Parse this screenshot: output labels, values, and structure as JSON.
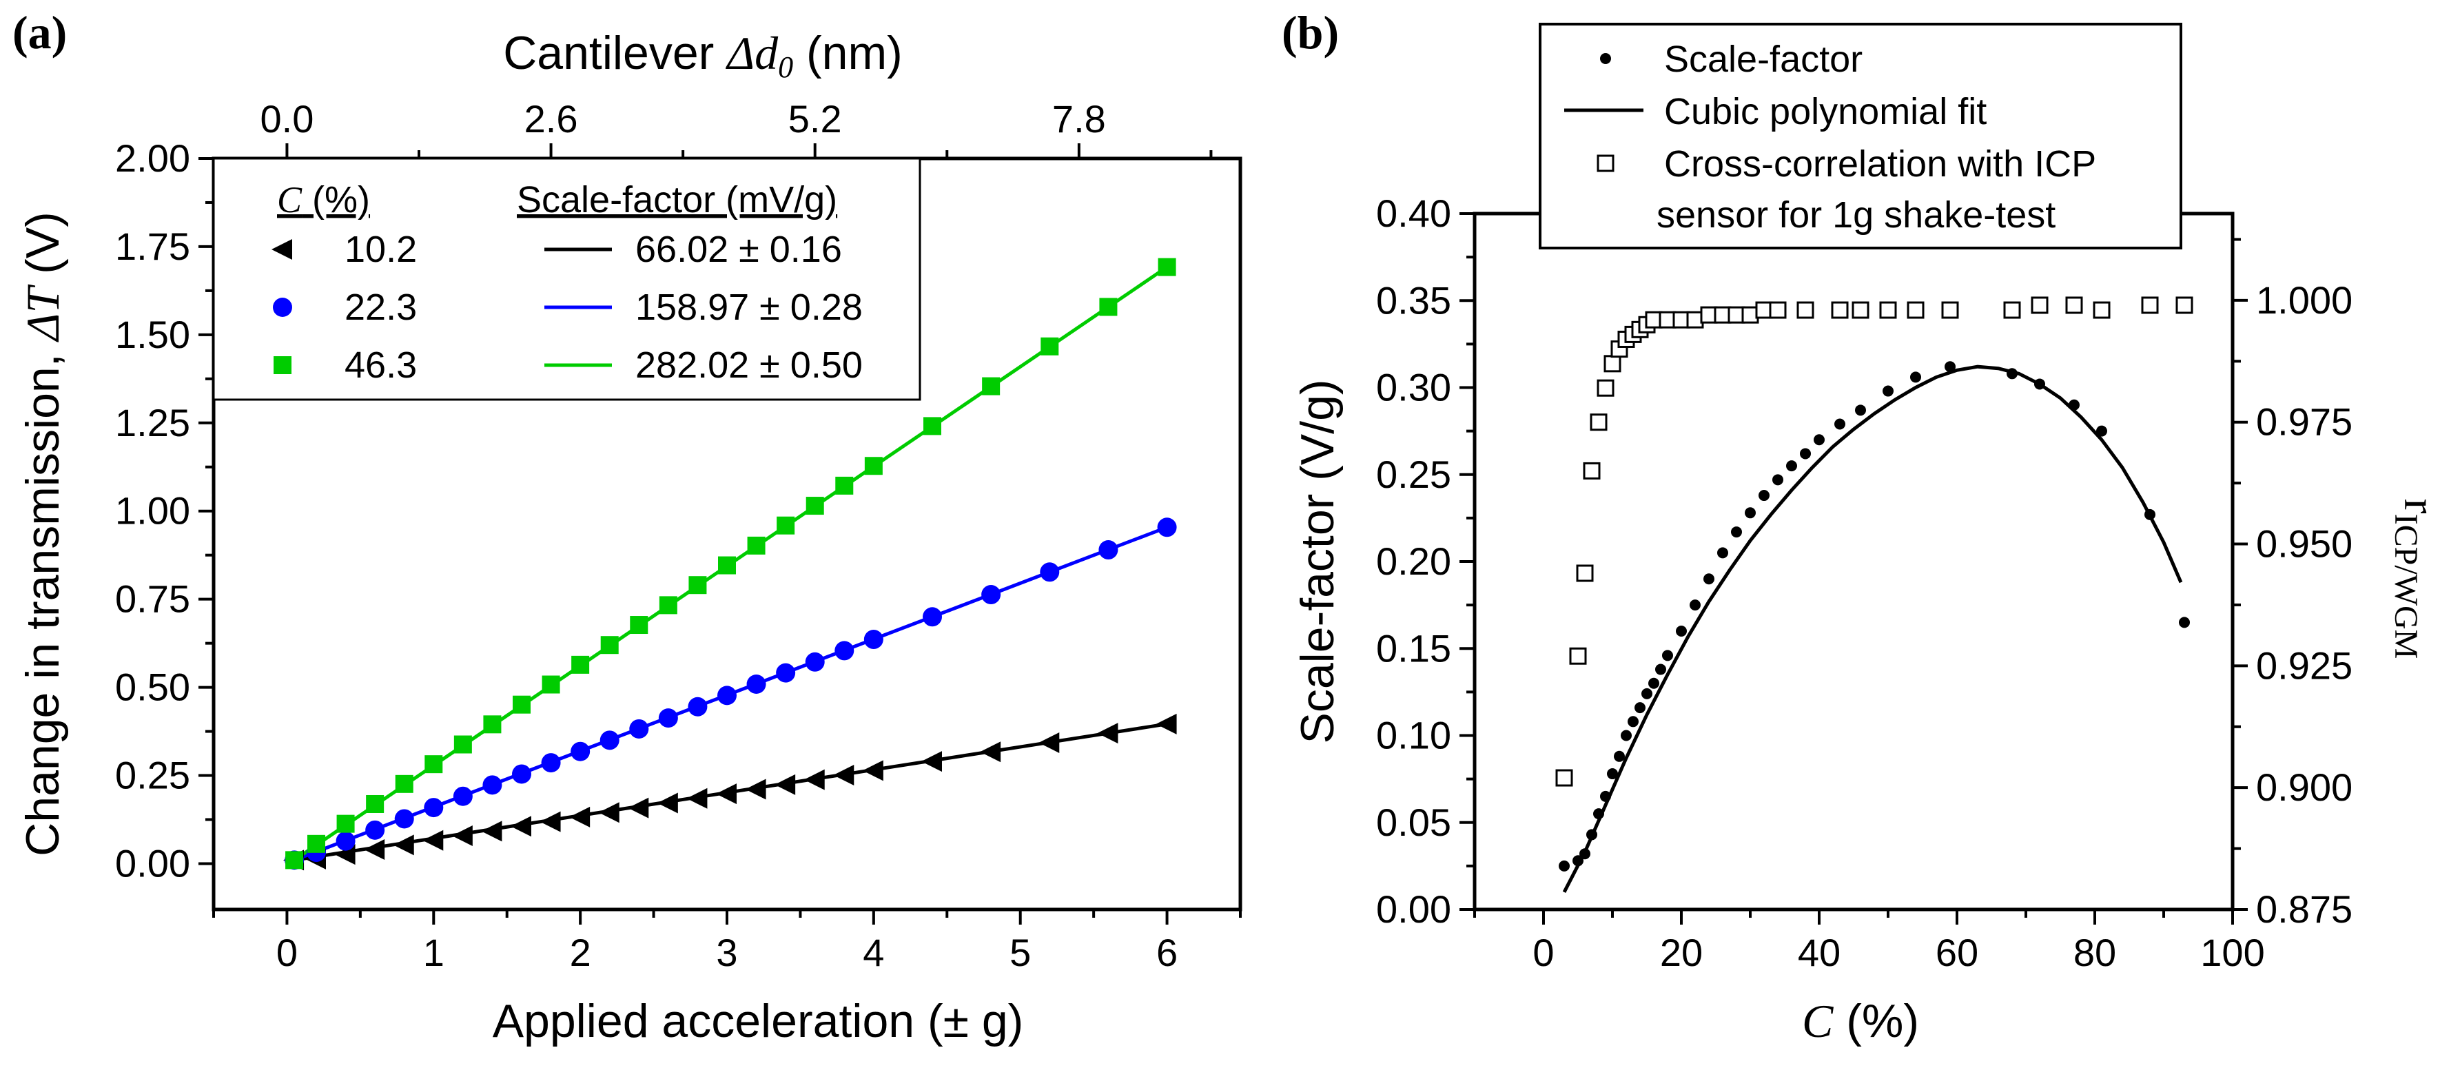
{
  "chart_data": [
    {
      "panel": "(a)",
      "type": "line",
      "xlabel": "Applied acceleration (± g)",
      "ylabel_prefix": "Change in transmission, ",
      "ylabel_symbol": "ΔT",
      "ylabel_suffix": " (V)",
      "top_xlabel_prefix": "Cantilever ",
      "top_xlabel_symbol": "Δd",
      "top_xlabel_sub": "0",
      "top_xlabel_suffix": " (nm)",
      "xlim": [
        -0.5,
        6.5
      ],
      "ylim": [
        -0.13,
        2.0
      ],
      "x_ticks": [
        0,
        1,
        2,
        3,
        4,
        5,
        6
      ],
      "x_tick_labels": [
        "0",
        "1",
        "2",
        "3",
        "4",
        "5",
        "6"
      ],
      "y_ticks": [
        0,
        0.25,
        0.5,
        0.75,
        1.0,
        1.25,
        1.5,
        1.75,
        2.0
      ],
      "y_tick_labels": [
        "0.00",
        "0.25",
        "0.50",
        "0.75",
        "1.00",
        "1.25",
        "1.50",
        "1.75",
        "2.00"
      ],
      "top_ticks_at_x": [
        0,
        1.8,
        3.6,
        5.4
      ],
      "top_tick_labels": [
        "0.0",
        "2.6",
        "5.2",
        "7.8"
      ],
      "legend": {
        "header_c": "C",
        "header_c_suffix": " (%)",
        "header_sf": "Scale-factor (mV/g)",
        "entries": [
          {
            "c": "10.2",
            "sf": "66.02 ± 0.16",
            "color": "#000000",
            "marker": "triangle-left"
          },
          {
            "c": "22.3",
            "sf": "158.97 ± 0.28",
            "color": "#0000ff",
            "marker": "circle"
          },
          {
            "c": "46.3",
            "sf": "282.02 ± 0.50",
            "color": "#00cc00",
            "marker": "square"
          }
        ]
      },
      "series": [
        {
          "name": "10.2",
          "color": "#000000",
          "marker": "triangle-left",
          "fit_slope": 0.066,
          "x": [
            0.05,
            0.2,
            0.4,
            0.6,
            0.8,
            1.0,
            1.2,
            1.4,
            1.6,
            1.8,
            2.0,
            2.2,
            2.4,
            2.6,
            2.8,
            3.0,
            3.2,
            3.4,
            3.6,
            3.8,
            4.0,
            4.4,
            4.8,
            5.2,
            5.6,
            6.0
          ],
          "y": [
            0.01,
            0.013,
            0.026,
            0.04,
            0.053,
            0.066,
            0.079,
            0.092,
            0.106,
            0.119,
            0.132,
            0.145,
            0.158,
            0.172,
            0.185,
            0.198,
            0.211,
            0.224,
            0.238,
            0.251,
            0.264,
            0.29,
            0.317,
            0.343,
            0.37,
            0.396
          ]
        },
        {
          "name": "22.3",
          "color": "#0000ff",
          "marker": "circle",
          "fit_slope": 0.159,
          "x": [
            0.05,
            0.2,
            0.4,
            0.6,
            0.8,
            1.0,
            1.2,
            1.4,
            1.6,
            1.8,
            2.0,
            2.2,
            2.4,
            2.6,
            2.8,
            3.0,
            3.2,
            3.4,
            3.6,
            3.8,
            4.0,
            4.4,
            4.8,
            5.2,
            5.6,
            6.0
          ],
          "y": [
            0.01,
            0.032,
            0.064,
            0.095,
            0.127,
            0.159,
            0.191,
            0.223,
            0.254,
            0.286,
            0.318,
            0.35,
            0.382,
            0.413,
            0.445,
            0.477,
            0.509,
            0.541,
            0.572,
            0.604,
            0.636,
            0.7,
            0.763,
            0.827,
            0.89,
            0.954
          ]
        },
        {
          "name": "46.3",
          "color": "#00cc00",
          "marker": "square",
          "fit_slope": 0.282,
          "x": [
            0.05,
            0.2,
            0.4,
            0.6,
            0.8,
            1.0,
            1.2,
            1.4,
            1.6,
            1.8,
            2.0,
            2.2,
            2.4,
            2.6,
            2.8,
            3.0,
            3.2,
            3.4,
            3.6,
            3.8,
            4.0,
            4.4,
            4.8,
            5.2,
            5.6,
            6.0
          ],
          "y": [
            0.01,
            0.056,
            0.113,
            0.169,
            0.226,
            0.282,
            0.338,
            0.395,
            0.451,
            0.508,
            0.564,
            0.62,
            0.677,
            0.733,
            0.79,
            0.846,
            0.902,
            0.959,
            1.015,
            1.072,
            1.128,
            1.241,
            1.354,
            1.467,
            1.579,
            1.692
          ]
        }
      ]
    },
    {
      "panel": "(b)",
      "type": "scatter",
      "xlabel_symbol": "C",
      "xlabel_suffix": " (%)",
      "ylabel": "Scale-factor (V/g)",
      "ylabel_right": "r",
      "ylabel_right_sub": "ICP/WGM",
      "xlim": [
        -10,
        100
      ],
      "ylim": [
        0,
        0.4
      ],
      "y2lim": [
        0.875,
        1.0178
      ],
      "x_ticks": [
        0,
        20,
        40,
        60,
        80,
        100
      ],
      "x_tick_labels": [
        "0",
        "20",
        "40",
        "60",
        "80",
        "100"
      ],
      "y_ticks": [
        0,
        0.05,
        0.1,
        0.15,
        0.2,
        0.25,
        0.3,
        0.35,
        0.4
      ],
      "y_tick_labels": [
        "0.00",
        "0.05",
        "0.10",
        "0.15",
        "0.20",
        "0.25",
        "0.30",
        "0.35",
        "0.40"
      ],
      "y2_ticks": [
        0.875,
        0.9,
        0.925,
        0.95,
        0.975,
        1.0
      ],
      "y2_tick_labels": [
        "0.875",
        "0.900",
        "0.925",
        "0.950",
        "0.975",
        "1.000"
      ],
      "legend": [
        {
          "label": "Scale-factor",
          "kind": "dot"
        },
        {
          "label": "Cubic polynomial fit",
          "kind": "line"
        },
        {
          "label": "Cross-correlation with ICP",
          "label2": "sensor for 1g shake-test",
          "kind": "open-square"
        }
      ],
      "series": [
        {
          "name": "Scale-factor",
          "marker": "dot",
          "color": "#000000",
          "x": [
            3,
            5,
            6,
            7,
            8,
            9,
            10,
            11,
            12,
            13,
            14,
            15,
            16,
            17,
            18,
            20,
            22,
            24,
            26,
            28,
            30,
            32,
            34,
            36,
            38,
            40,
            43,
            46,
            50,
            54,
            59,
            68,
            72,
            77,
            81,
            88,
            93
          ],
          "y": [
            0.025,
            0.028,
            0.032,
            0.043,
            0.055,
            0.065,
            0.078,
            0.088,
            0.1,
            0.108,
            0.116,
            0.124,
            0.13,
            0.138,
            0.146,
            0.16,
            0.175,
            0.19,
            0.205,
            0.217,
            0.228,
            0.238,
            0.247,
            0.255,
            0.262,
            0.27,
            0.279,
            0.287,
            0.298,
            0.306,
            0.312,
            0.308,
            0.302,
            0.29,
            0.275,
            0.227,
            0.165
          ]
        },
        {
          "name": "Cubic polynomial fit",
          "type": "line",
          "color": "#000000",
          "x": [
            3,
            6,
            9,
            12,
            15,
            18,
            21,
            24,
            27,
            30,
            33,
            36,
            39,
            42,
            45,
            48,
            51,
            54,
            57,
            60,
            63,
            66,
            69,
            72,
            75,
            78,
            81,
            84,
            87,
            90,
            92.5
          ],
          "y": [
            0.01,
            0.033,
            0.06,
            0.087,
            0.112,
            0.135,
            0.157,
            0.177,
            0.195,
            0.212,
            0.227,
            0.241,
            0.254,
            0.266,
            0.276,
            0.285,
            0.293,
            0.3,
            0.306,
            0.31,
            0.312,
            0.311,
            0.308,
            0.302,
            0.294,
            0.283,
            0.27,
            0.254,
            0.234,
            0.211,
            0.188
          ]
        },
        {
          "name": "Cross-correlation with ICP sensor for 1g shake-test",
          "marker": "open-square",
          "axis": "right",
          "color": "#000000",
          "x": [
            3,
            5,
            6,
            7,
            8,
            9,
            10,
            11,
            12,
            13,
            14,
            15,
            16,
            18,
            20,
            22,
            24,
            26,
            28,
            30,
            32,
            34,
            38,
            43,
            46,
            50,
            54,
            59,
            68,
            72,
            77,
            81,
            88,
            93
          ],
          "y": [
            0.902,
            0.927,
            0.944,
            0.965,
            0.975,
            0.982,
            0.987,
            0.99,
            0.992,
            0.993,
            0.994,
            0.995,
            0.996,
            0.996,
            0.996,
            0.996,
            0.997,
            0.997,
            0.997,
            0.997,
            0.998,
            0.998,
            0.998,
            0.998,
            0.998,
            0.998,
            0.998,
            0.998,
            0.998,
            0.999,
            0.999,
            0.998,
            0.999,
            0.999
          ]
        }
      ]
    }
  ]
}
